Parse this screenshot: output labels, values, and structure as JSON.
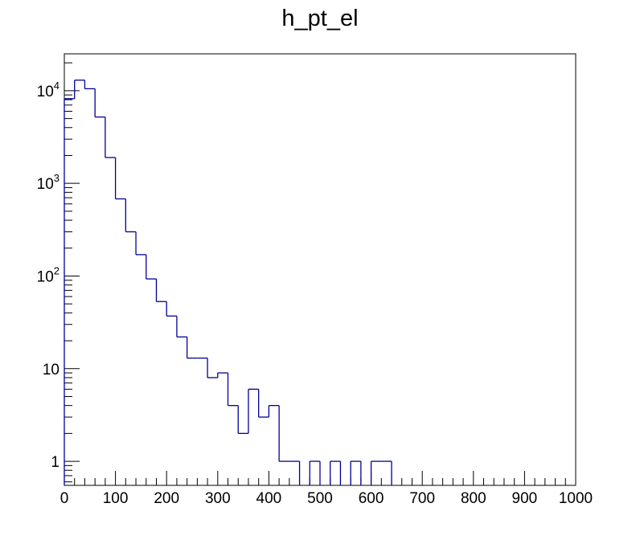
{
  "chart_data": {
    "type": "histogram",
    "title": "h_pt_el",
    "xlabel": "",
    "ylabel": "",
    "xlim": [
      0,
      1000
    ],
    "ylim": [
      0.55,
      25000
    ],
    "y_scale": "log",
    "grid": false,
    "legend": "none",
    "line_color": "#000099",
    "x_tick_labels": [
      "0",
      "100",
      "200",
      "300",
      "400",
      "500",
      "600",
      "700",
      "800",
      "900",
      "1000"
    ],
    "x_tick_values": [
      0,
      100,
      200,
      300,
      400,
      500,
      600,
      700,
      800,
      900,
      1000
    ],
    "y_ticks": [
      {
        "value": 10000,
        "base": "10",
        "exp": "4"
      },
      {
        "value": 1000,
        "base": "10",
        "exp": "3"
      },
      {
        "value": 100,
        "base": "10",
        "exp": "2"
      },
      {
        "value": 10,
        "base": "10",
        "exp": ""
      },
      {
        "value": 1,
        "base": "1",
        "exp": ""
      }
    ],
    "bin_width": 20,
    "bins": [
      {
        "x0": 0,
        "value": 8200
      },
      {
        "x0": 20,
        "value": 13000
      },
      {
        "x0": 40,
        "value": 10500
      },
      {
        "x0": 60,
        "value": 5200
      },
      {
        "x0": 80,
        "value": 1900
      },
      {
        "x0": 100,
        "value": 680
      },
      {
        "x0": 120,
        "value": 300
      },
      {
        "x0": 140,
        "value": 170
      },
      {
        "x0": 160,
        "value": 93
      },
      {
        "x0": 180,
        "value": 53
      },
      {
        "x0": 200,
        "value": 37
      },
      {
        "x0": 220,
        "value": 22
      },
      {
        "x0": 240,
        "value": 13
      },
      {
        "x0": 260,
        "value": 13
      },
      {
        "x0": 280,
        "value": 8
      },
      {
        "x0": 300,
        "value": 9
      },
      {
        "x0": 320,
        "value": 4
      },
      {
        "x0": 340,
        "value": 2
      },
      {
        "x0": 360,
        "value": 6
      },
      {
        "x0": 380,
        "value": 3
      },
      {
        "x0": 400,
        "value": 4
      },
      {
        "x0": 420,
        "value": 1
      },
      {
        "x0": 440,
        "value": 1
      },
      {
        "x0": 460,
        "value": 0
      },
      {
        "x0": 480,
        "value": 1
      },
      {
        "x0": 500,
        "value": 0
      },
      {
        "x0": 520,
        "value": 1
      },
      {
        "x0": 540,
        "value": 0
      },
      {
        "x0": 560,
        "value": 1
      },
      {
        "x0": 580,
        "value": 0
      },
      {
        "x0": 600,
        "value": 1
      },
      {
        "x0": 620,
        "value": 1
      },
      {
        "x0": 640,
        "value": 0
      }
    ]
  }
}
